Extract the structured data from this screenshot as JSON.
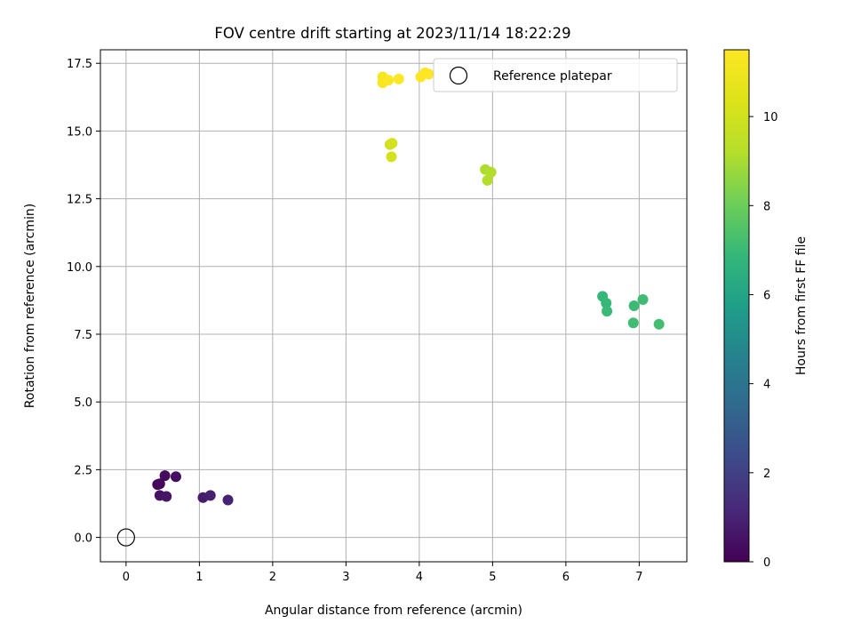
{
  "chart_data": {
    "type": "scatter",
    "title": "FOV centre drift starting at 2023/11/14 18:22:29",
    "xlabel": "Angular distance from reference (arcmin)",
    "ylabel": "Rotation from reference (arcmin)",
    "xlim": [
      -0.35,
      7.65
    ],
    "ylim": [
      -0.9,
      18.0
    ],
    "xticks": [
      0,
      1,
      2,
      3,
      4,
      5,
      6,
      7
    ],
    "yticks": [
      0.0,
      2.5,
      5.0,
      7.5,
      10.0,
      12.5,
      15.0,
      17.5
    ],
    "xtick_labels": [
      "0",
      "1",
      "2",
      "3",
      "4",
      "5",
      "6",
      "7"
    ],
    "ytick_labels": [
      "0.0",
      "2.5",
      "5.0",
      "7.5",
      "10.0",
      "12.5",
      "15.0",
      "17.5"
    ],
    "grid": true,
    "colormap": "viridis",
    "colorbar": {
      "label": "Hours from first FF file",
      "range": [
        0,
        11.5
      ],
      "ticks": [
        0,
        2,
        4,
        6,
        8,
        10
      ],
      "tick_labels": [
        "0",
        "2",
        "4",
        "6",
        "8",
        "10"
      ]
    },
    "reference": {
      "name": "Reference platepar",
      "x": 0,
      "y": 0
    },
    "legend": {
      "position": "top-right",
      "entries": [
        "Reference platepar"
      ]
    },
    "points": [
      {
        "x": 0.43,
        "y": 1.95,
        "hours": 0.1
      },
      {
        "x": 0.46,
        "y": 1.98,
        "hours": 0.2
      },
      {
        "x": 0.53,
        "y": 2.28,
        "hours": 0.3
      },
      {
        "x": 0.68,
        "y": 2.24,
        "hours": 0.4
      },
      {
        "x": 0.46,
        "y": 1.55,
        "hours": 0.5
      },
      {
        "x": 0.55,
        "y": 1.51,
        "hours": 0.6
      },
      {
        "x": 1.05,
        "y": 1.47,
        "hours": 0.8
      },
      {
        "x": 1.15,
        "y": 1.55,
        "hours": 0.9
      },
      {
        "x": 1.39,
        "y": 1.38,
        "hours": 1.0
      },
      {
        "x": 6.5,
        "y": 8.9,
        "hours": 6.9
      },
      {
        "x": 6.55,
        "y": 8.65,
        "hours": 6.95
      },
      {
        "x": 6.56,
        "y": 8.35,
        "hours": 7.0
      },
      {
        "x": 6.93,
        "y": 8.55,
        "hours": 7.05
      },
      {
        "x": 7.05,
        "y": 8.78,
        "hours": 7.1
      },
      {
        "x": 6.92,
        "y": 7.92,
        "hours": 7.15
      },
      {
        "x": 7.27,
        "y": 7.87,
        "hours": 7.2
      },
      {
        "x": 4.9,
        "y": 13.58,
        "hours": 9.1
      },
      {
        "x": 4.98,
        "y": 13.48,
        "hours": 9.15
      },
      {
        "x": 4.93,
        "y": 13.18,
        "hours": 9.2
      },
      {
        "x": 3.6,
        "y": 14.5,
        "hours": 10.0
      },
      {
        "x": 3.63,
        "y": 14.55,
        "hours": 10.05
      },
      {
        "x": 3.62,
        "y": 14.05,
        "hours": 10.1
      },
      {
        "x": 3.5,
        "y": 17.0,
        "hours": 11.3
      },
      {
        "x": 3.5,
        "y": 16.78,
        "hours": 11.35
      },
      {
        "x": 3.58,
        "y": 16.88,
        "hours": 11.4
      },
      {
        "x": 3.72,
        "y": 16.92,
        "hours": 11.45
      },
      {
        "x": 4.02,
        "y": 17.0,
        "hours": 11.5
      },
      {
        "x": 4.08,
        "y": 17.15,
        "hours": 11.5
      },
      {
        "x": 4.13,
        "y": 17.1,
        "hours": 11.5
      }
    ]
  }
}
